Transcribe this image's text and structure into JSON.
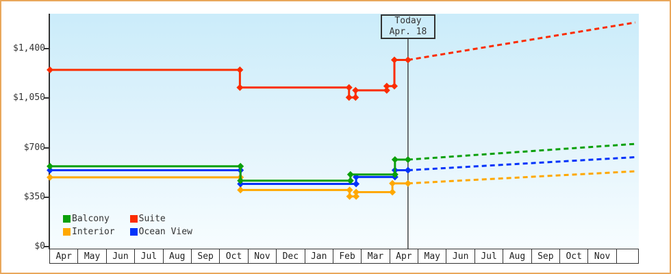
{
  "colors": {
    "page_border": "#e9a75b",
    "axis": "#333333",
    "plot_gradient_top": "#cbecfa",
    "plot_gradient_bottom": "#f7fdff",
    "text": "#333333",
    "balcony": "#0aa00a",
    "suite": "#fb2c00",
    "interior": "#ffa800",
    "ocean_view": "#0233fa"
  },
  "today_marker": {
    "title": "Today",
    "date": "Apr. 18",
    "month_position": 12.63
  },
  "legend": {
    "items": [
      {
        "label": "Balcony",
        "color": "#0aa00a"
      },
      {
        "label": "Suite",
        "color": "#fb2c00"
      },
      {
        "label": "Interior",
        "color": "#ffa800"
      },
      {
        "label": "Ocean View",
        "color": "#0233fa"
      }
    ]
  },
  "chart_data": {
    "type": "line",
    "description": "Stepped price history per cabin category with dashed price forecast after today's marker. Points are [months offset from first Apr, price USD].",
    "x_axis": {
      "months": [
        "Apr",
        "May",
        "Jun",
        "Jul",
        "Aug",
        "Sep",
        "Oct",
        "Nov",
        "Dec",
        "Jan",
        "Feb",
        "Mar",
        "Apr",
        "May",
        "Jun",
        "Jul",
        "Aug",
        "Sep",
        "Oct",
        "Nov"
      ],
      "range_months": [
        0,
        20.77
      ]
    },
    "y_axis": {
      "ticks": [
        {
          "label": "$0",
          "value": 0
        },
        {
          "label": "$350",
          "value": 350
        },
        {
          "label": "$700",
          "value": 700
        },
        {
          "label": "$1,050",
          "value": 1050
        },
        {
          "label": "$1,400",
          "value": 1400
        }
      ],
      "ylim": [
        0,
        1650
      ],
      "grid": false
    },
    "legend_position": "bottom-left-inside",
    "series": [
      {
        "id": "interior",
        "name": "Interior",
        "color": "#ffa800",
        "points": [
          [
            0,
            490
          ],
          [
            6.72,
            490
          ],
          [
            6.72,
            400
          ],
          [
            10.57,
            400
          ],
          [
            10.57,
            355
          ],
          [
            10.8,
            355
          ],
          [
            10.8,
            385
          ],
          [
            12.08,
            385
          ],
          [
            12.08,
            447
          ],
          [
            12.63,
            447
          ]
        ],
        "projection": [
          [
            12.63,
            447
          ],
          [
            20.7,
            533
          ]
        ]
      },
      {
        "id": "ocean-view",
        "name": "Ocean View",
        "color": "#0233fa",
        "points": [
          [
            0,
            540
          ],
          [
            6.72,
            540
          ],
          [
            6.72,
            443
          ],
          [
            10.8,
            443
          ],
          [
            10.8,
            492
          ],
          [
            12.17,
            492
          ],
          [
            12.17,
            540
          ],
          [
            12.63,
            540
          ]
        ],
        "projection": [
          [
            12.63,
            540
          ],
          [
            20.7,
            633
          ]
        ]
      },
      {
        "id": "balcony",
        "name": "Balcony",
        "color": "#0aa00a",
        "points": [
          [
            0,
            568
          ],
          [
            6.72,
            568
          ],
          [
            6.72,
            466
          ],
          [
            10.6,
            466
          ],
          [
            10.6,
            510
          ],
          [
            12.17,
            510
          ],
          [
            12.17,
            615
          ],
          [
            12.63,
            615
          ]
        ],
        "projection": [
          [
            12.63,
            615
          ],
          [
            20.7,
            727
          ]
        ]
      },
      {
        "id": "suite",
        "name": "Suite",
        "color": "#fb2c00",
        "points": [
          [
            0,
            1250
          ],
          [
            6.7,
            1250
          ],
          [
            6.7,
            1125
          ],
          [
            10.55,
            1125
          ],
          [
            10.55,
            1055
          ],
          [
            10.78,
            1055
          ],
          [
            10.78,
            1105
          ],
          [
            11.88,
            1105
          ],
          [
            11.88,
            1135
          ],
          [
            12.15,
            1135
          ],
          [
            12.15,
            1320
          ],
          [
            12.63,
            1320
          ]
        ],
        "projection": [
          [
            12.63,
            1320
          ],
          [
            20.65,
            1585
          ]
        ]
      }
    ]
  }
}
